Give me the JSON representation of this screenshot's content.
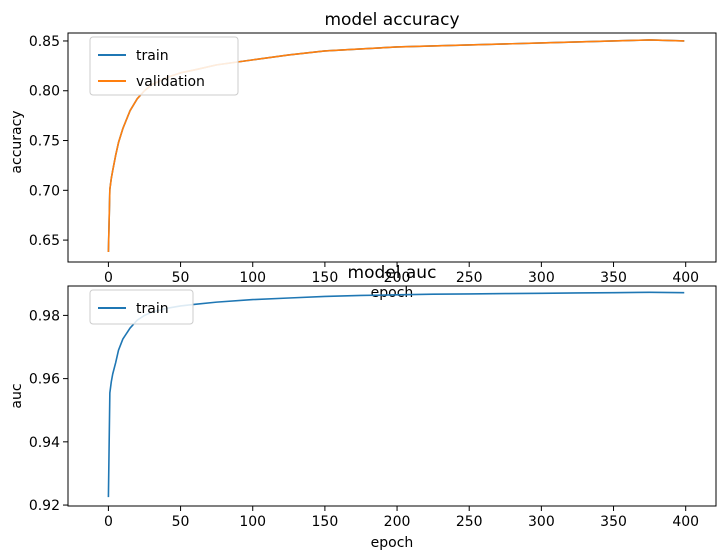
{
  "chart_data": [
    {
      "type": "line",
      "title": "model accuracy",
      "xlabel": "epoch",
      "ylabel": "accuracy",
      "xlim": [
        -28,
        421
      ],
      "ylim": [
        0.628,
        0.858
      ],
      "xticks": [
        0,
        50,
        100,
        150,
        200,
        250,
        300,
        350,
        400
      ],
      "xtick_labels": [
        "0",
        "50",
        "100",
        "150",
        "200",
        "250",
        "300",
        "350",
        "400"
      ],
      "yticks": [
        0.65,
        0.7,
        0.75,
        0.8,
        0.85
      ],
      "ytick_labels": [
        "0.65",
        "0.70",
        "0.75",
        "0.80",
        "0.85"
      ],
      "grid": false,
      "legend": {
        "position": "upper-left",
        "entries": [
          "train",
          "validation"
        ]
      },
      "series": [
        {
          "name": "train",
          "color": "#1f77b4",
          "x": [
            0,
            1,
            2,
            3,
            5,
            7,
            10,
            15,
            20,
            25,
            30,
            40,
            50,
            60,
            75,
            100,
            125,
            150,
            175,
            200,
            225,
            250,
            275,
            300,
            325,
            350,
            375,
            399
          ],
          "y": [
            0.638,
            0.701,
            0.712,
            0.72,
            0.735,
            0.748,
            0.762,
            0.78,
            0.792,
            0.8,
            0.806,
            0.813,
            0.818,
            0.821,
            0.826,
            0.831,
            0.836,
            0.84,
            0.842,
            0.844,
            0.845,
            0.846,
            0.847,
            0.848,
            0.849,
            0.85,
            0.851,
            0.85
          ]
        },
        {
          "name": "validation",
          "color": "#ff7f0e",
          "x": [
            0,
            1,
            2,
            3,
            5,
            7,
            10,
            15,
            20,
            25,
            30,
            40,
            50,
            60,
            75,
            100,
            125,
            150,
            175,
            200,
            225,
            250,
            275,
            300,
            325,
            350,
            375,
            399
          ],
          "y": [
            0.638,
            0.701,
            0.712,
            0.72,
            0.735,
            0.748,
            0.762,
            0.78,
            0.792,
            0.8,
            0.806,
            0.813,
            0.818,
            0.821,
            0.826,
            0.831,
            0.836,
            0.84,
            0.842,
            0.844,
            0.845,
            0.846,
            0.847,
            0.848,
            0.849,
            0.85,
            0.851,
            0.85
          ]
        }
      ]
    },
    {
      "type": "line",
      "title": "model auc",
      "xlabel": "epoch",
      "ylabel": "auc",
      "xlim": [
        -28,
        421
      ],
      "ylim": [
        0.9197,
        0.9893
      ],
      "xticks": [
        0,
        50,
        100,
        150,
        200,
        250,
        300,
        350,
        400
      ],
      "xtick_labels": [
        "0",
        "50",
        "100",
        "150",
        "200",
        "250",
        "300",
        "350",
        "400"
      ],
      "yticks": [
        0.92,
        0.94,
        0.96,
        0.98
      ],
      "ytick_labels": [
        "0.92",
        "0.94",
        "0.96",
        "0.98"
      ],
      "grid": false,
      "legend": {
        "position": "upper-left",
        "entries": [
          "train"
        ]
      },
      "series": [
        {
          "name": "train",
          "color": "#1f77b4",
          "x": [
            0,
            1,
            2,
            3,
            5,
            7,
            10,
            15,
            20,
            25,
            30,
            40,
            50,
            60,
            75,
            100,
            125,
            150,
            175,
            200,
            225,
            250,
            275,
            300,
            325,
            350,
            375,
            399
          ],
          "y": [
            0.9225,
            0.9555,
            0.959,
            0.9615,
            0.965,
            0.969,
            0.9725,
            0.976,
            0.9785,
            0.98,
            0.981,
            0.9822,
            0.983,
            0.9835,
            0.9842,
            0.985,
            0.9855,
            0.986,
            0.9863,
            0.9865,
            0.9867,
            0.9868,
            0.9869,
            0.987,
            0.9871,
            0.9872,
            0.9873,
            0.9872
          ]
        }
      ]
    }
  ]
}
